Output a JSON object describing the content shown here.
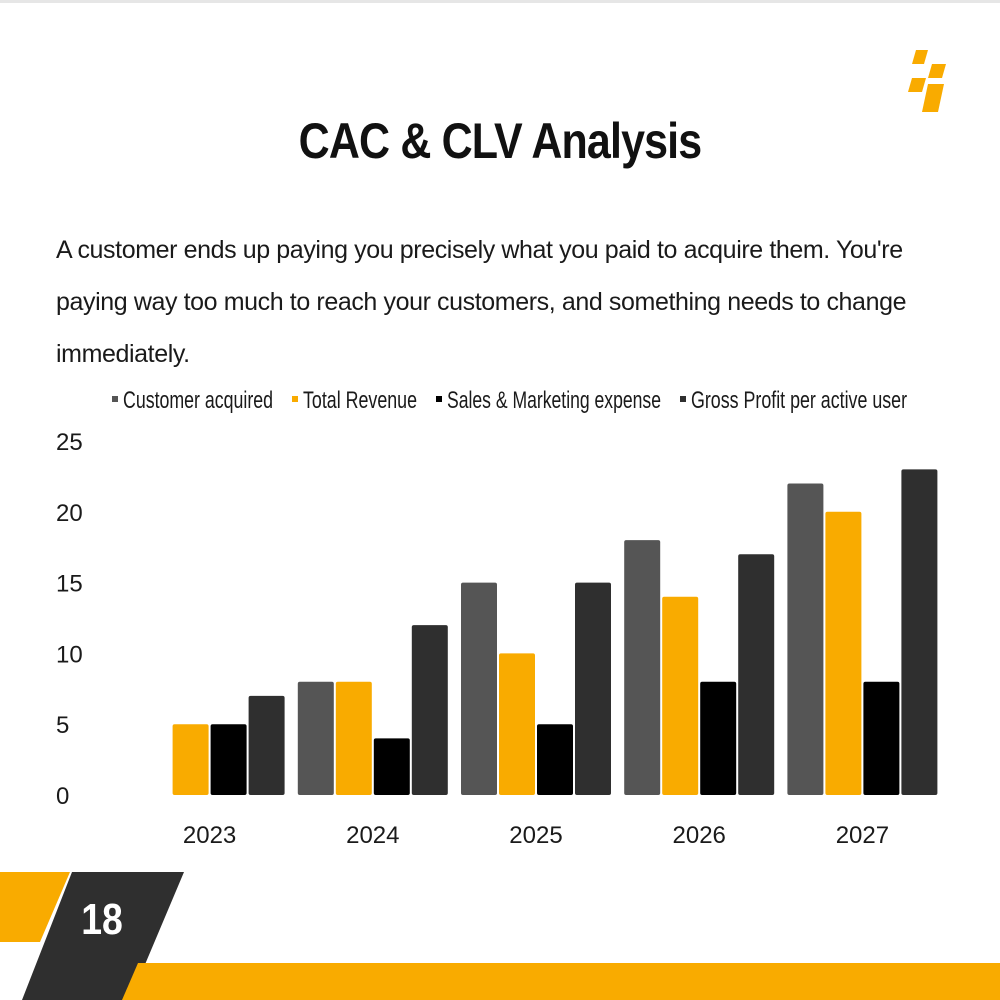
{
  "slide": {
    "title": "CAC & CLV Analysis",
    "description": "A customer ends up paying you precisely what you paid to acquire them. You're paying way too much to reach your customers, and something needs to change immediately.",
    "page_number": "18"
  },
  "colors": {
    "accent": "#f9ab00",
    "dark": "#2f2f2f",
    "gray": "#555555",
    "black": "#000000"
  },
  "chart_data": {
    "type": "bar",
    "title": "",
    "xlabel": "",
    "ylabel": "",
    "categories": [
      "2023",
      "2024",
      "2025",
      "2026",
      "2027"
    ],
    "ylim": [
      0,
      25
    ],
    "yticks": [
      0,
      5,
      10,
      15,
      20,
      25
    ],
    "grid": false,
    "legend": "top",
    "series": [
      {
        "name": "Customer acquired",
        "color": "#555555",
        "values": [
          0,
          8,
          15,
          18,
          22
        ]
      },
      {
        "name": "Total Revenue",
        "color": "#f9ab00",
        "values": [
          5,
          8,
          10,
          14,
          20
        ]
      },
      {
        "name": "Sales & Marketing expense",
        "color": "#000000",
        "values": [
          5,
          4,
          5,
          8,
          8
        ]
      },
      {
        "name": "Gross Profit per active user",
        "color": "#2f2f2f",
        "values": [
          7,
          12,
          15,
          17,
          23
        ]
      }
    ]
  }
}
